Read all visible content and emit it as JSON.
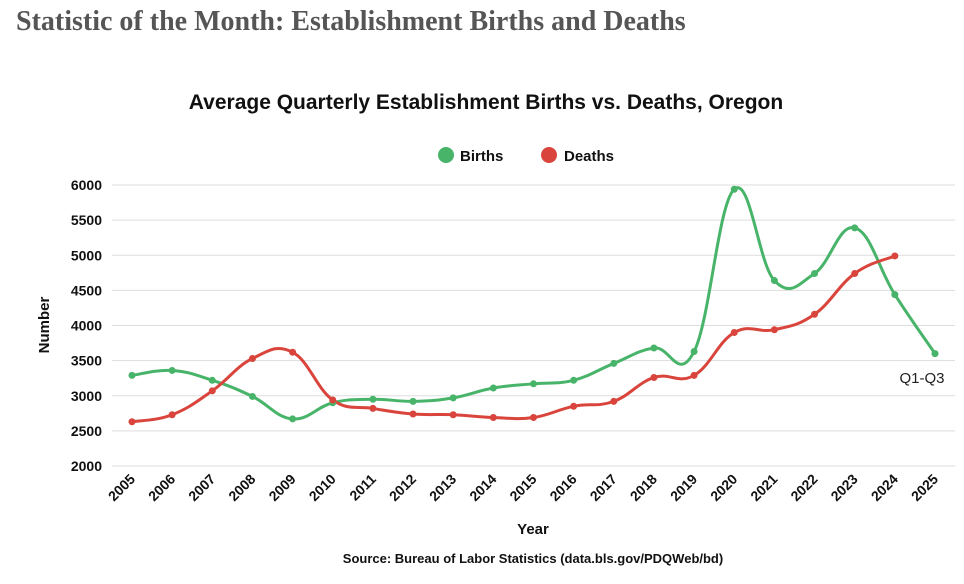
{
  "page": {
    "heading": "Statistic of the Month: Establishment Births and Deaths"
  },
  "colors": {
    "births": "#48b46a",
    "deaths": "#d9453c",
    "grid": "#dddddd",
    "text": "#111111"
  },
  "chart_data": {
    "type": "line",
    "title": "Average Quarterly Establishment Births vs. Deaths, Oregon",
    "xlabel": "Year",
    "ylabel": "Number",
    "source": "Source: Bureau of Labor Statistics (data.bls.gov/PDQWeb/bd)",
    "ylim": [
      2000,
      6000
    ],
    "y_ticks": [
      2000,
      2500,
      3000,
      3500,
      4000,
      4500,
      5000,
      5500,
      6000
    ],
    "grid": true,
    "legend_position": "top-center",
    "x": [
      "2005",
      "2006",
      "2007",
      "2008",
      "2009",
      "2010",
      "2011",
      "2012",
      "2013",
      "2014",
      "2015",
      "2016",
      "2017",
      "2018",
      "2019",
      "2020",
      "2021",
      "2022",
      "2023",
      "2024",
      "2025"
    ],
    "series": [
      {
        "name": "Births",
        "color": "#48b46a",
        "values": [
          3290,
          3360,
          3220,
          2990,
          2670,
          2900,
          2950,
          2920,
          2970,
          3110,
          3170,
          3220,
          3460,
          3680,
          3630,
          5940,
          4640,
          4740,
          5390,
          4440,
          3600
        ]
      },
      {
        "name": "Deaths",
        "color": "#d9453c",
        "values": [
          2630,
          2730,
          3070,
          3530,
          3620,
          2940,
          2820,
          2740,
          2730,
          2690,
          2690,
          2850,
          2920,
          3260,
          3290,
          3900,
          3940,
          4160,
          4740,
          4990,
          null
        ]
      }
    ],
    "annotations": [
      {
        "text": "Q1-Q3",
        "series": "Births",
        "x": "2025"
      }
    ]
  }
}
